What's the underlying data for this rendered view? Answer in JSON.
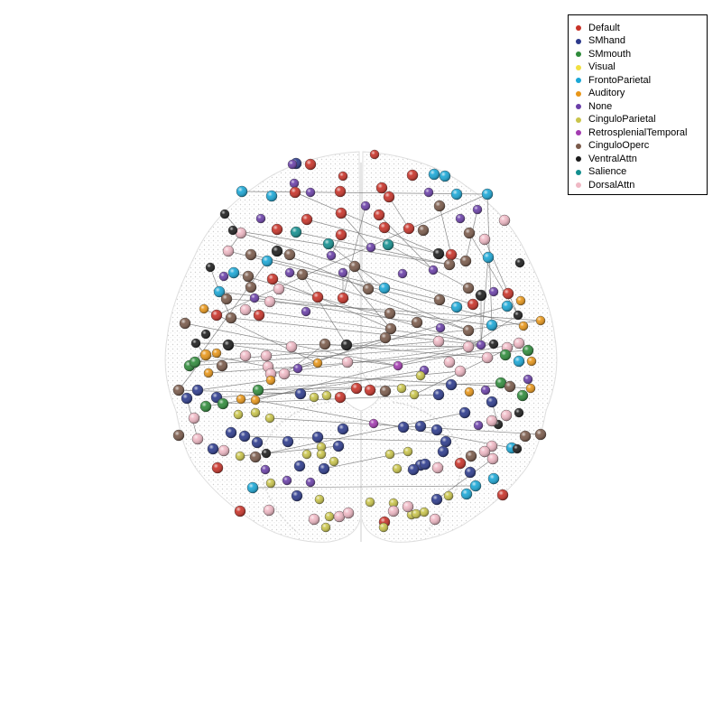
{
  "figure": {
    "legend_title": "",
    "legend_placement": "top-right",
    "colors": {
      "background": "#ffffff",
      "brain_mesh": "#d2d2d2",
      "connection": "#6e6e6e",
      "legend_border": "#000000"
    }
  },
  "legend": [
    {
      "name": "Default",
      "color": "#c83228"
    },
    {
      "name": "SMhand",
      "color": "#2c3a8c"
    },
    {
      "name": "SMmouth",
      "color": "#2e8b3a"
    },
    {
      "name": "Visual",
      "color": "#f2e040"
    },
    {
      "name": "FrontoParietal",
      "color": "#1aa7d6"
    },
    {
      "name": "Auditory",
      "color": "#e89618"
    },
    {
      "name": "None",
      "color": "#6a3fa8"
    },
    {
      "name": "CinguloParietal",
      "color": "#c9c44a"
    },
    {
      "name": "RetrosplenialTemporal",
      "color": "#a33bb0"
    },
    {
      "name": "CinguloOperc",
      "color": "#7a5a4a"
    },
    {
      "name": "VentralAttn",
      "color": "#1b1b1b"
    },
    {
      "name": "Salience",
      "color": "#138f8f"
    },
    {
      "name": "DorsalAttn",
      "color": "#efb8c4"
    }
  ]
}
